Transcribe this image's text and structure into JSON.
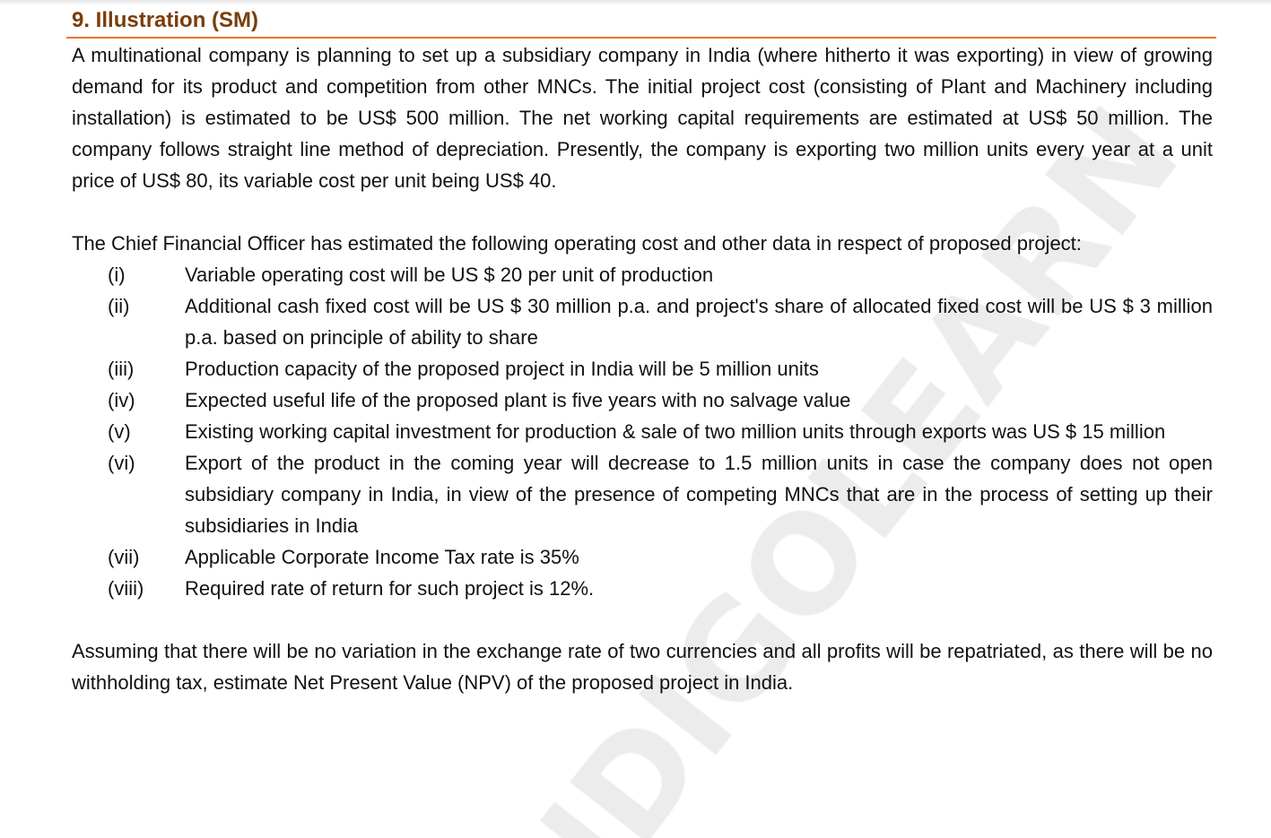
{
  "heading": "9.  Illustration (SM)",
  "paragraph1": "A multinational company is planning to set up a subsidiary company in India (where hitherto it was exporting) in view of growing demand for its product and competition from other MNCs. The initial project cost (consisting of Plant and Machinery including installation) is estimated to be US$ 500 million. The net working capital requirements are estimated at US$ 50 million. The company follows straight line method of depreciation. Presently, the company is exporting two million units every year at a unit price of US$ 80, its variable cost per unit being US$ 40.",
  "paragraph2": "The Chief Financial Officer has estimated the following operating cost and other data in respect of proposed project:",
  "items": [
    {
      "num": "(i)",
      "text": "Variable operating cost will be US $ 20 per unit of production"
    },
    {
      "num": "(ii)",
      "text": "Additional cash fixed cost will be US $ 30 million p.a. and project's share of allocated fixed cost will be US $ 3 million p.a. based on principle of ability to share"
    },
    {
      "num": "(iii)",
      "text": "Production capacity of the proposed project in India will be 5 million units"
    },
    {
      "num": "(iv)",
      "text": "Expected useful life of the proposed plant is five years with no salvage value"
    },
    {
      "num": "(v)",
      "text": "Existing working capital investment for production & sale of two million units through exports was US $ 15 million"
    },
    {
      "num": "(vi)",
      "text": "Export of the product in the coming year will decrease to 1.5 million units in case the company does not open subsidiary company in India, in view of the presence of competing MNCs that are in the process of setting up their subsidiaries in India"
    },
    {
      "num": "(vii)",
      "text": "Applicable Corporate Income Tax rate is 35%"
    },
    {
      "num": "(viii)",
      "text": "Required rate of return for such project is 12%."
    }
  ],
  "paragraph3": "Assuming that there will be no variation in the exchange rate of two currencies and all profits will be repatriated, as there will be no withholding tax, estimate Net Present Value (NPV) of the proposed project in India.",
  "watermark": "INDIGOLEARN",
  "colors": {
    "heading": "#7a3d0a",
    "rule": "#e8772e",
    "watermark": "#ececec"
  }
}
